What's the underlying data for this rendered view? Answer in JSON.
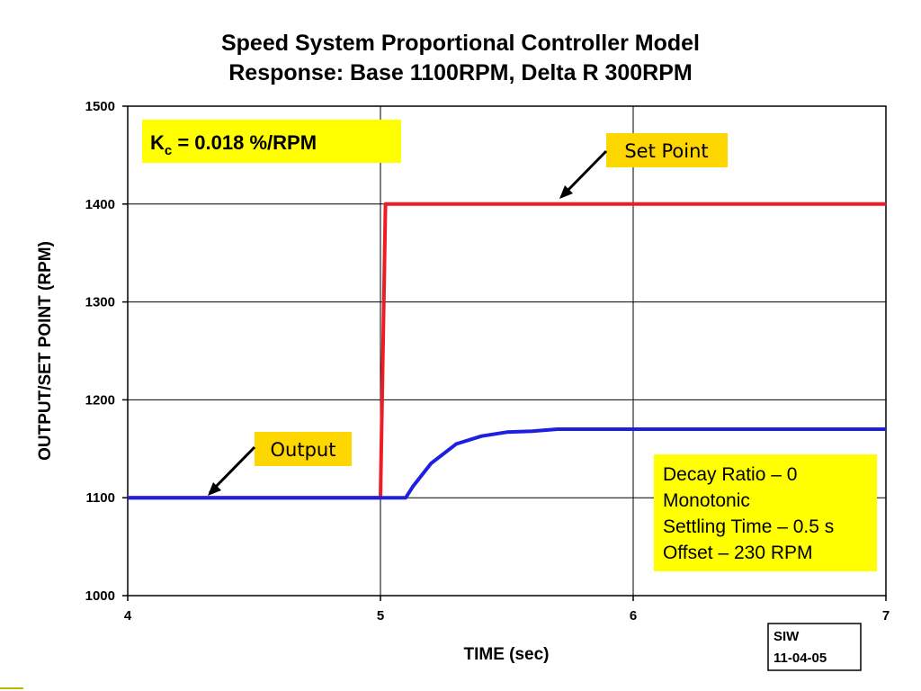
{
  "chart_data": {
    "type": "line",
    "title_lines": [
      "Speed System Proportional Controller Model",
      "Response: Base 1100RPM, Delta R 300RPM"
    ],
    "xlabel": "TIME (sec)",
    "ylabel": "OUTPUT/SET POINT (RPM)",
    "xlim": [
      4,
      7
    ],
    "ylim": [
      1000,
      1500
    ],
    "x_ticks": [
      "4",
      "5",
      "6",
      "7"
    ],
    "y_ticks": [
      "1000",
      "1100",
      "1200",
      "1300",
      "1400",
      "1500"
    ],
    "grid": true,
    "series": [
      {
        "name": "Set Point",
        "color": "#ee1c24",
        "x": [
          4.0,
          5.0,
          5.0,
          5.02,
          7.0
        ],
        "y": [
          1100,
          1100,
          1100,
          1400,
          1400
        ]
      },
      {
        "name": "Output",
        "color": "#1f1fe0",
        "x": [
          4.0,
          5.1,
          5.13,
          5.2,
          5.3,
          5.4,
          5.5,
          5.6,
          5.7,
          5.8,
          7.0
        ],
        "y": [
          1100,
          1100,
          1112,
          1135,
          1155,
          1163,
          1167,
          1168,
          1170,
          1170,
          1170
        ]
      }
    ],
    "annotations": {
      "set_point_label": "Set Point",
      "output_label": "Output",
      "gain": {
        "prefix": "K",
        "subscript": "c",
        "suffix": " = 0.018 %/RPM"
      },
      "notes": [
        "Decay Ratio – 0",
        "Monotonic",
        "Settling Time – 0.5 s",
        "Offset – 230 RPM"
      ],
      "stamp": [
        "SIW",
        "11-04-05"
      ]
    },
    "colors": {
      "callout_fill": "#ffd700",
      "note_fill": "#ffff00",
      "gain_fill": "#ffff00"
    }
  }
}
